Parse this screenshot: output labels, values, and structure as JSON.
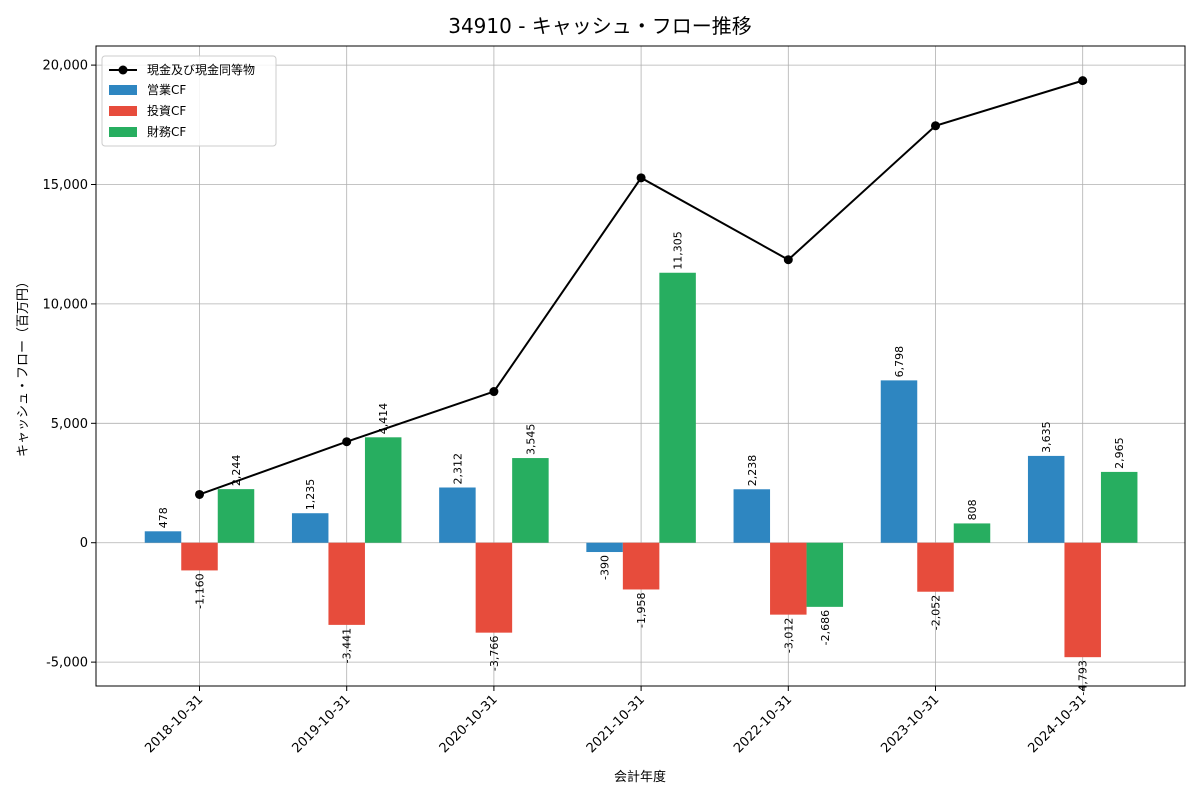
{
  "chart_data": {
    "type": "bar",
    "title": "34910 - キャッシュ・フロー推移",
    "xlabel": "会計年度",
    "ylabel": "キャッシュ・フロー（百万円）",
    "categories": [
      "2018-10-31",
      "2019-10-31",
      "2020-10-31",
      "2021-10-31",
      "2022-10-31",
      "2023-10-31",
      "2024-10-31"
    ],
    "ylim": [
      -6000,
      20800
    ],
    "yticks": [
      -5000,
      0,
      5000,
      10000,
      15000,
      20000
    ],
    "ytick_labels": [
      "-5,000",
      "0",
      "5,000",
      "10,000",
      "15,000",
      "20,000"
    ],
    "grid": true,
    "legend_position": "top-left",
    "series": [
      {
        "name": "営業CF",
        "kind": "bar",
        "color": "#2e86c1",
        "values": [
          478,
          1235,
          2312,
          -390,
          2238,
          6798,
          3635
        ],
        "labels": [
          "478",
          "1,235",
          "2,312",
          "-390",
          "2,238",
          "6,798",
          "3,635"
        ]
      },
      {
        "name": "投資CF",
        "kind": "bar",
        "color": "#e74c3c",
        "values": [
          -1160,
          -3441,
          -3766,
          -1958,
          -3012,
          -2052,
          -4793
        ],
        "labels": [
          "-1,160",
          "-3,441",
          "-3,766",
          "-1,958",
          "-3,012",
          "-2,052",
          "-4,793"
        ]
      },
      {
        "name": "財務CF",
        "kind": "bar",
        "color": "#27ae60",
        "values": [
          2244,
          4414,
          3545,
          11305,
          -2686,
          808,
          2965
        ],
        "labels": [
          "2,244",
          "4,414",
          "3,545",
          "11,305",
          "-2,686",
          "808",
          "2,965"
        ]
      },
      {
        "name": "現金及び現金同等物",
        "kind": "line",
        "color": "#000000",
        "values": [
          2020,
          4230,
          6330,
          15280,
          11850,
          17460,
          19350
        ]
      }
    ]
  }
}
